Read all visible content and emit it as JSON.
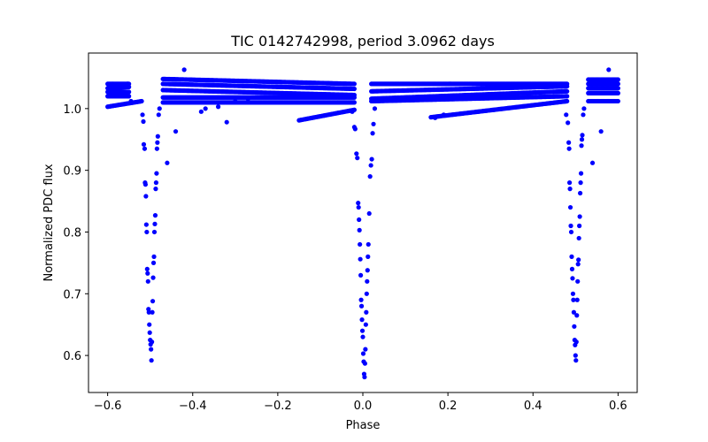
{
  "chart_data": {
    "type": "scatter",
    "title": "TIC 0142742998, period 3.0962 days",
    "xlabel": "Phase",
    "ylabel": "Normalized PDC flux",
    "xlim": [
      -0.645,
      0.645
    ],
    "ylim": [
      0.54,
      1.09
    ],
    "grid": false,
    "marker_color": "#0000ff",
    "xticks": [
      -0.6,
      -0.4,
      -0.2,
      0.0,
      0.2,
      0.4,
      0.6
    ],
    "xtick_labels": [
      "−0.6",
      "−0.4",
      "−0.2",
      "0.0",
      "0.2",
      "0.4",
      "0.6"
    ],
    "yticks": [
      0.6,
      0.7,
      0.8,
      0.9,
      1.0
    ],
    "ytick_labels": [
      "0.6",
      "0.7",
      "0.8",
      "0.9",
      "1.0"
    ],
    "eclipse_centers": [
      -0.5,
      0.0,
      0.5
    ],
    "baseline_bands": [
      {
        "x_start": -0.6,
        "x_end": -0.55,
        "y_start": 1.04,
        "y_end": 1.04
      },
      {
        "x_start": -0.6,
        "x_end": -0.55,
        "y_start": 1.033,
        "y_end": 1.035
      },
      {
        "x_start": -0.6,
        "x_end": -0.55,
        "y_start": 1.027,
        "y_end": 1.027
      },
      {
        "x_start": -0.6,
        "x_end": -0.55,
        "y_start": 1.02,
        "y_end": 1.02
      },
      {
        "x_start": -0.6,
        "x_end": -0.52,
        "y_start": 1.003,
        "y_end": 1.012
      },
      {
        "x_start": -0.47,
        "x_end": -0.02,
        "y_start": 1.048,
        "y_end": 1.04
      },
      {
        "x_start": -0.47,
        "x_end": -0.02,
        "y_start": 1.04,
        "y_end": 1.032
      },
      {
        "x_start": -0.47,
        "x_end": -0.02,
        "y_start": 1.03,
        "y_end": 1.022
      },
      {
        "x_start": -0.47,
        "x_end": -0.02,
        "y_start": 1.018,
        "y_end": 1.018
      },
      {
        "x_start": -0.47,
        "x_end": -0.02,
        "y_start": 1.01,
        "y_end": 1.01
      },
      {
        "x_start": -0.15,
        "x_end": -0.02,
        "y_start": 0.981,
        "y_end": 0.998
      },
      {
        "x_start": 0.02,
        "x_end": 0.48,
        "y_start": 1.04,
        "y_end": 1.04
      },
      {
        "x_start": 0.02,
        "x_end": 0.48,
        "y_start": 1.028,
        "y_end": 1.036
      },
      {
        "x_start": 0.02,
        "x_end": 0.48,
        "y_start": 1.016,
        "y_end": 1.028
      },
      {
        "x_start": 0.02,
        "x_end": 0.48,
        "y_start": 1.012,
        "y_end": 1.02
      },
      {
        "x_start": 0.16,
        "x_end": 0.48,
        "y_start": 0.986,
        "y_end": 1.012
      },
      {
        "x_start": 0.53,
        "x_end": 0.6,
        "y_start": 1.047,
        "y_end": 1.047
      },
      {
        "x_start": 0.53,
        "x_end": 0.6,
        "y_start": 1.04,
        "y_end": 1.04
      },
      {
        "x_start": 0.53,
        "x_end": 0.6,
        "y_start": 1.033,
        "y_end": 1.033
      },
      {
        "x_start": 0.53,
        "x_end": 0.6,
        "y_start": 1.025,
        "y_end": 1.025
      },
      {
        "x_start": 0.53,
        "x_end": 0.6,
        "y_start": 1.012,
        "y_end": 1.012
      }
    ],
    "points": [
      [
        -0.565,
        1.036
      ],
      [
        -0.553,
        1.04
      ],
      [
        -0.545,
        1.012
      ],
      [
        -0.56,
        1.025
      ],
      [
        -0.518,
        0.99
      ],
      [
        -0.516,
        0.979
      ],
      [
        -0.515,
        0.942
      ],
      [
        -0.513,
        0.935
      ],
      [
        -0.512,
        0.88
      ],
      [
        -0.511,
        0.877
      ],
      [
        -0.51,
        0.858
      ],
      [
        -0.509,
        0.812
      ],
      [
        -0.508,
        0.8
      ],
      [
        -0.507,
        0.74
      ],
      [
        -0.506,
        0.733
      ],
      [
        -0.505,
        0.72
      ],
      [
        -0.504,
        0.675
      ],
      [
        -0.503,
        0.67
      ],
      [
        -0.502,
        0.65
      ],
      [
        -0.501,
        0.637
      ],
      [
        -0.5,
        0.625
      ],
      [
        -0.499,
        0.618
      ],
      [
        -0.498,
        0.61
      ],
      [
        -0.497,
        0.592
      ],
      [
        -0.496,
        0.622
      ],
      [
        -0.495,
        0.67
      ],
      [
        -0.494,
        0.688
      ],
      [
        -0.493,
        0.726
      ],
      [
        -0.492,
        0.75
      ],
      [
        -0.491,
        0.76
      ],
      [
        -0.49,
        0.8
      ],
      [
        -0.489,
        0.813
      ],
      [
        -0.488,
        0.827
      ],
      [
        -0.487,
        0.87
      ],
      [
        -0.486,
        0.88
      ],
      [
        -0.485,
        0.895
      ],
      [
        -0.484,
        0.935
      ],
      [
        -0.483,
        0.945
      ],
      [
        -0.482,
        0.955
      ],
      [
        -0.48,
        0.99
      ],
      [
        -0.478,
        1.0
      ],
      [
        -0.46,
        0.912
      ],
      [
        -0.44,
        0.963
      ],
      [
        -0.42,
        1.063
      ],
      [
        -0.38,
        0.995
      ],
      [
        -0.37,
        1.0
      ],
      [
        -0.34,
        1.003
      ],
      [
        -0.32,
        0.978
      ],
      [
        -0.3,
        1.012
      ],
      [
        -0.27,
        1.016
      ],
      [
        -0.025,
        0.995
      ],
      [
        -0.02,
        0.97
      ],
      [
        -0.018,
        0.967
      ],
      [
        -0.015,
        0.927
      ],
      [
        -0.013,
        0.92
      ],
      [
        -0.011,
        0.847
      ],
      [
        -0.01,
        0.84
      ],
      [
        -0.009,
        0.82
      ],
      [
        -0.008,
        0.803
      ],
      [
        -0.007,
        0.78
      ],
      [
        -0.006,
        0.756
      ],
      [
        -0.005,
        0.73
      ],
      [
        -0.004,
        0.69
      ],
      [
        -0.003,
        0.68
      ],
      [
        -0.002,
        0.658
      ],
      [
        -0.001,
        0.64
      ],
      [
        0.0,
        0.63
      ],
      [
        0.001,
        0.603
      ],
      [
        0.002,
        0.59
      ],
      [
        0.003,
        0.57
      ],
      [
        0.004,
        0.565
      ],
      [
        0.005,
        0.587
      ],
      [
        0.006,
        0.61
      ],
      [
        0.007,
        0.65
      ],
      [
        0.008,
        0.67
      ],
      [
        0.009,
        0.7
      ],
      [
        0.01,
        0.72
      ],
      [
        0.011,
        0.738
      ],
      [
        0.012,
        0.76
      ],
      [
        0.013,
        0.78
      ],
      [
        0.015,
        0.83
      ],
      [
        0.017,
        0.89
      ],
      [
        0.019,
        0.908
      ],
      [
        0.021,
        0.918
      ],
      [
        0.023,
        0.96
      ],
      [
        0.025,
        0.975
      ],
      [
        0.028,
        1.0
      ],
      [
        0.17,
        0.985
      ],
      [
        0.19,
        0.99
      ],
      [
        0.478,
        0.99
      ],
      [
        0.482,
        0.977
      ],
      [
        0.484,
        0.945
      ],
      [
        0.485,
        0.935
      ],
      [
        0.486,
        0.88
      ],
      [
        0.487,
        0.87
      ],
      [
        0.488,
        0.84
      ],
      [
        0.489,
        0.81
      ],
      [
        0.49,
        0.8
      ],
      [
        0.491,
        0.76
      ],
      [
        0.492,
        0.74
      ],
      [
        0.493,
        0.725
      ],
      [
        0.494,
        0.7
      ],
      [
        0.495,
        0.69
      ],
      [
        0.496,
        0.67
      ],
      [
        0.497,
        0.647
      ],
      [
        0.498,
        0.625
      ],
      [
        0.499,
        0.617
      ],
      [
        0.5,
        0.6
      ],
      [
        0.501,
        0.592
      ],
      [
        0.502,
        0.622
      ],
      [
        0.503,
        0.665
      ],
      [
        0.504,
        0.69
      ],
      [
        0.505,
        0.72
      ],
      [
        0.506,
        0.748
      ],
      [
        0.507,
        0.755
      ],
      [
        0.508,
        0.79
      ],
      [
        0.509,
        0.81
      ],
      [
        0.51,
        0.825
      ],
      [
        0.511,
        0.863
      ],
      [
        0.512,
        0.88
      ],
      [
        0.513,
        0.895
      ],
      [
        0.514,
        0.94
      ],
      [
        0.515,
        0.95
      ],
      [
        0.516,
        0.957
      ],
      [
        0.518,
        0.99
      ],
      [
        0.52,
        1.0
      ],
      [
        0.54,
        0.912
      ],
      [
        0.56,
        0.963
      ],
      [
        0.578,
        1.063
      ]
    ]
  }
}
